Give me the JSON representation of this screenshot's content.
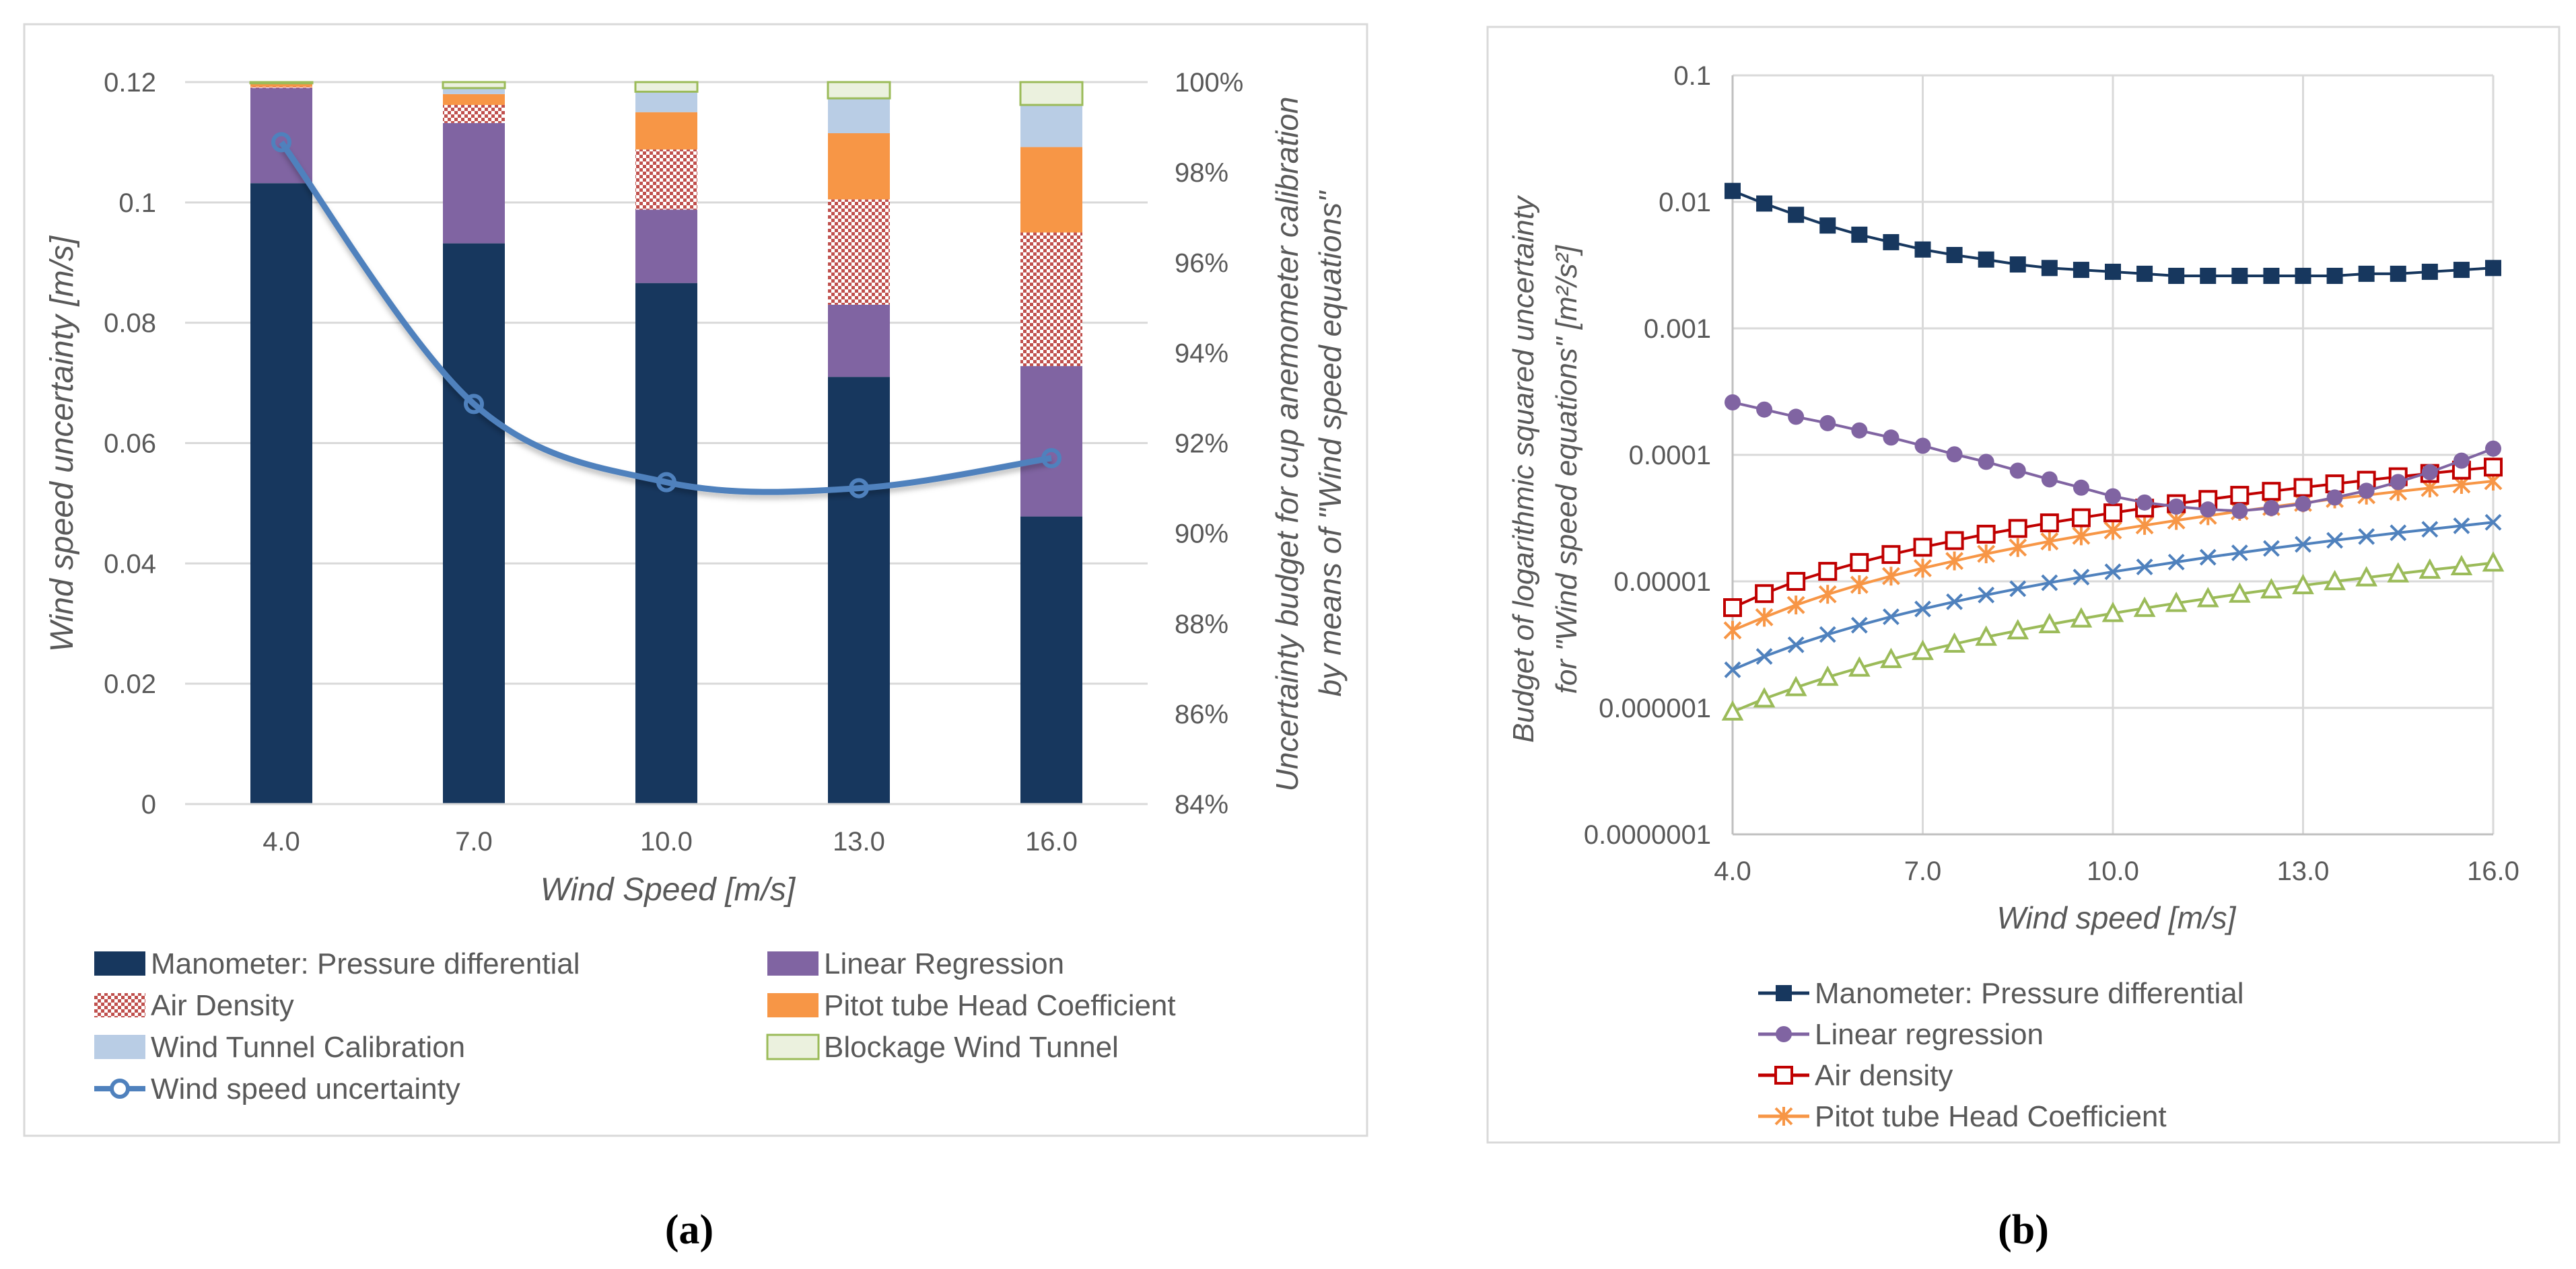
{
  "chart_data": [
    {
      "type": "bar",
      "stacked": true,
      "panel_label": "(a)",
      "xlabel": "Wind Speed  [m/s]",
      "ylabel_left": "Wind speed uncertainty  [m/s]",
      "ylabel_right_line1": "Uncertainty budget for cup anemometer calibration",
      "ylabel_right_line2": "by means of \"Wind speed equations\"",
      "categories": [
        "4.0",
        "7.0",
        "10.0",
        "13.0",
        "16.0"
      ],
      "ylim_left": [
        0,
        0.12
      ],
      "yticks_left": [
        "0",
        "0.02",
        "0.04",
        "0.06",
        "0.08",
        "0.1",
        "0.12"
      ],
      "ylim_right_pct": [
        84,
        100
      ],
      "yticks_right": [
        "84%",
        "86%",
        "88%",
        "90%",
        "92%",
        "94%",
        "96%",
        "98%",
        "100%"
      ],
      "series": [
        {
          "name": "Manometer: Pressure differential",
          "color": "#17375e",
          "values": [
            0.1032,
            0.0932,
            0.0866,
            0.071,
            0.0478
          ]
        },
        {
          "name": "Linear Regression",
          "color": "#8064a2",
          "values": [
            0.0158,
            0.02,
            0.0122,
            0.012,
            0.025
          ]
        },
        {
          "name": "Air Density",
          "color": "#c0504d",
          "pattern": "checker",
          "values": [
            0.0002,
            0.003,
            0.01,
            0.0175,
            0.0222
          ]
        },
        {
          "name": "Pitot tube Head Coefficient",
          "color": "#f79646",
          "values": [
            0.0005,
            0.0018,
            0.0062,
            0.011,
            0.0142
          ]
        },
        {
          "name": "Wind Tunnel Calibration",
          "color": "#b9cde5",
          "values": [
            0.0001,
            0.001,
            0.0034,
            0.0058,
            0.007
          ]
        },
        {
          "name": "Blockage Wind Tunnel",
          "color": "#ebf1de",
          "border": "#9bbb59",
          "values": [
            0.0002,
            0.001,
            0.0016,
            0.0027,
            0.0038
          ]
        }
      ],
      "line": {
        "name": "Wind speed uncertainty",
        "color": "#4f81bd",
        "axis": "right",
        "values": [
          0.11,
          0.0665,
          0.0535,
          0.0525,
          0.0575
        ]
      },
      "legend_columns": [
        [
          "Manometer: Pressure differential",
          "Air Density",
          "Wind Tunnel Calibration",
          "Wind speed uncertainty"
        ],
        [
          "Linear Regression",
          "Pitot tube Head Coefficient",
          "Blockage Wind Tunnel"
        ]
      ],
      "legend_position": "bottom"
    },
    {
      "type": "line",
      "yscale": "log",
      "panel_label": "(b)",
      "xlabel": "Wind speed  [m/s]",
      "ylabel_line1": "Budget of logarithmic squared uncertainty",
      "ylabel_line2": "for \"Wind speed equations\"  [m²/s²]",
      "xlim": [
        4,
        16
      ],
      "xticks": [
        "4.0",
        "7.0",
        "10.0",
        "13.0",
        "16.0"
      ],
      "ylim": [
        1e-07,
        0.1
      ],
      "yticks": [
        "0.0000001",
        "0.000001",
        "0.00001",
        "0.0001",
        "0.001",
        "0.01",
        "0.1"
      ],
      "x": [
        4.0,
        4.5,
        5.0,
        5.5,
        6.0,
        6.5,
        7.0,
        7.5,
        8.0,
        8.5,
        9.0,
        9.5,
        10.0,
        10.5,
        11.0,
        11.5,
        12.0,
        12.5,
        13.0,
        13.5,
        14.0,
        14.5,
        15.0,
        15.5,
        16.0
      ],
      "series": [
        {
          "name": "Manometer: Pressure differential",
          "color": "#17375e",
          "marker": "square-filled",
          "values": [
            0.0122,
            0.0097,
            0.0079,
            0.0065,
            0.0055,
            0.0048,
            0.0042,
            0.0038,
            0.0035,
            0.0032,
            0.003,
            0.0029,
            0.0028,
            0.0027,
            0.0026,
            0.0026,
            0.0026,
            0.0026,
            0.0026,
            0.0026,
            0.0027,
            0.0027,
            0.0028,
            0.0029,
            0.003
          ]
        },
        {
          "name": "Linear regression",
          "color": "#8064a2",
          "marker": "circle-filled",
          "values": [
            0.00026,
            0.000228,
            0.0002,
            0.000178,
            0.000156,
            0.000137,
            0.000118,
            0.000101,
            8.8e-05,
            7.5e-05,
            6.4e-05,
            5.5e-05,
            4.7e-05,
            4.2e-05,
            3.9e-05,
            3.7e-05,
            3.6e-05,
            3.8e-05,
            4.1e-05,
            4.6e-05,
            5.2e-05,
            6.1e-05,
            7.3e-05,
            9e-05,
            0.000112
          ]
        },
        {
          "name": "Air density",
          "color": "#c00000",
          "marker": "square-open",
          "values": [
            6.2e-06,
            8e-06,
            1e-05,
            1.2e-05,
            1.41e-05,
            1.63e-05,
            1.86e-05,
            2.1e-05,
            2.36e-05,
            2.62e-05,
            2.9e-05,
            3.18e-05,
            3.48e-05,
            3.79e-05,
            4.11e-05,
            4.44e-05,
            4.79e-05,
            5.15e-05,
            5.52e-05,
            5.9e-05,
            6.3e-05,
            6.71e-05,
            7.13e-05,
            7.57e-05,
            8e-05
          ]
        },
        {
          "name": "Pitot tube Head Coefficient",
          "color": "#f79646",
          "marker": "asterisk",
          "values": [
            4.1e-06,
            5.2e-06,
            6.5e-06,
            7.9e-06,
            9.4e-06,
            1.1e-05,
            1.27e-05,
            1.45e-05,
            1.65e-05,
            1.85e-05,
            2.07e-05,
            2.29e-05,
            2.53e-05,
            2.77e-05,
            3.03e-05,
            3.3e-05,
            3.58e-05,
            3.87e-05,
            4.17e-05,
            4.48e-05,
            4.8e-05,
            5.13e-05,
            5.47e-05,
            5.83e-05,
            6.2e-05
          ]
        },
        {
          "name": "Wind tunnel calibration",
          "color": "#4f81bd",
          "marker": "x",
          "values": [
            2e-06,
            2.55e-06,
            3.15e-06,
            3.8e-06,
            4.5e-06,
            5.25e-06,
            6.05e-06,
            6.9e-06,
            7.8e-06,
            8.75e-06,
            9.75e-06,
            1.08e-05,
            1.19e-05,
            1.3e-05,
            1.42e-05,
            1.55e-05,
            1.68e-05,
            1.82e-05,
            1.96e-05,
            2.11e-05,
            2.26e-05,
            2.42e-05,
            2.58e-05,
            2.75e-05,
            2.93e-05
          ]
        },
        {
          "name": "Blockage wind tunnel",
          "color": "#9bbb59",
          "marker": "triangle-open",
          "values": [
            9.3e-07,
            1.18e-06,
            1.45e-06,
            1.75e-06,
            2.07e-06,
            2.42e-06,
            2.8e-06,
            3.2e-06,
            3.63e-06,
            4.08e-06,
            4.56e-06,
            5.06e-06,
            5.59e-06,
            6.14e-06,
            6.72e-06,
            7.32e-06,
            7.95e-06,
            8.6e-06,
            9.28e-06,
            9.98e-06,
            1.07e-05,
            1.15e-05,
            1.23e-05,
            1.31e-05,
            1.4e-05
          ]
        }
      ],
      "legend_entries": [
        "Manometer: Pressure differential",
        "Linear regression",
        "Air density",
        "Pitot tube Head Coefficient"
      ],
      "legend_position": "bottom"
    }
  ]
}
